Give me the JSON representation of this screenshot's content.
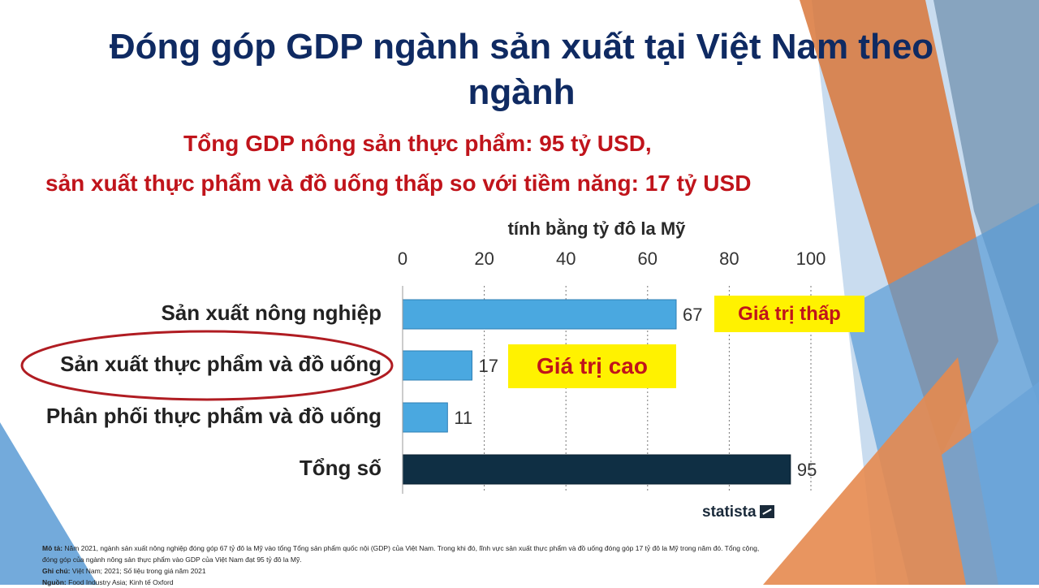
{
  "title": "Đóng góp GDP ngành sản xuất tại Việt Nam theo ngành",
  "subtitle_line1": "Tổng GDP nông sản thực phẩm: 95 tỷ USD,",
  "subtitle_line2": "sản xuất thực phẩm và đồ uống thấp so với tiềm năng: 17 tỷ USD",
  "callouts": {
    "low": "Giá trị thấp",
    "high": "Giá trị cao"
  },
  "brand": "statista",
  "footnote": {
    "desc_label": "Mô tả:",
    "desc_text": "Năm 2021, ngành sản xuất nông nghiệp đóng góp 67 tỷ đô la Mỹ vào tổng Tổng sản phẩm quốc nội (GDP) của Việt Nam. Trong khi đó, lĩnh vực sản xuất thực phẩm và đồ uống đóng góp 17 tỷ đô la Mỹ trong năm đó. Tổng cộng, đóng góp của ngành nông sản thực phẩm vào GDP của Việt Nam đạt 95 tỷ đô la Mỹ.",
    "note_label": "Ghi chú:",
    "note_text": "Việt Nam; 2021; Số liệu trong giá năm 2021",
    "source_label": "Nguồn:",
    "source_text": "Food Industry Asia; Kinh tế Oxford"
  },
  "colors": {
    "title": "#0f2a62",
    "subtitle": "#c0141b",
    "bar": "#4aa8e0",
    "bar_total": "#0f2f44",
    "callout_bg": "#fff200",
    "ellipse": "#b01c22"
  },
  "chart_data": {
    "type": "bar",
    "orientation": "horizontal",
    "xlabel": "tính bằng tỷ đô la Mỹ",
    "xlim": [
      0,
      100
    ],
    "xticks": [
      0,
      20,
      40,
      60,
      80,
      100
    ],
    "categories": [
      "Sản xuất nông nghiệp",
      "Sản xuất thực phẩm và đồ uống",
      "Phân phối thực phẩm và đồ uống",
      "Tổng số"
    ],
    "values": [
      67,
      17,
      11,
      95
    ],
    "highlighted_category": "Sản xuất thực phẩm và đồ uống",
    "grid": "vertical dotted"
  }
}
